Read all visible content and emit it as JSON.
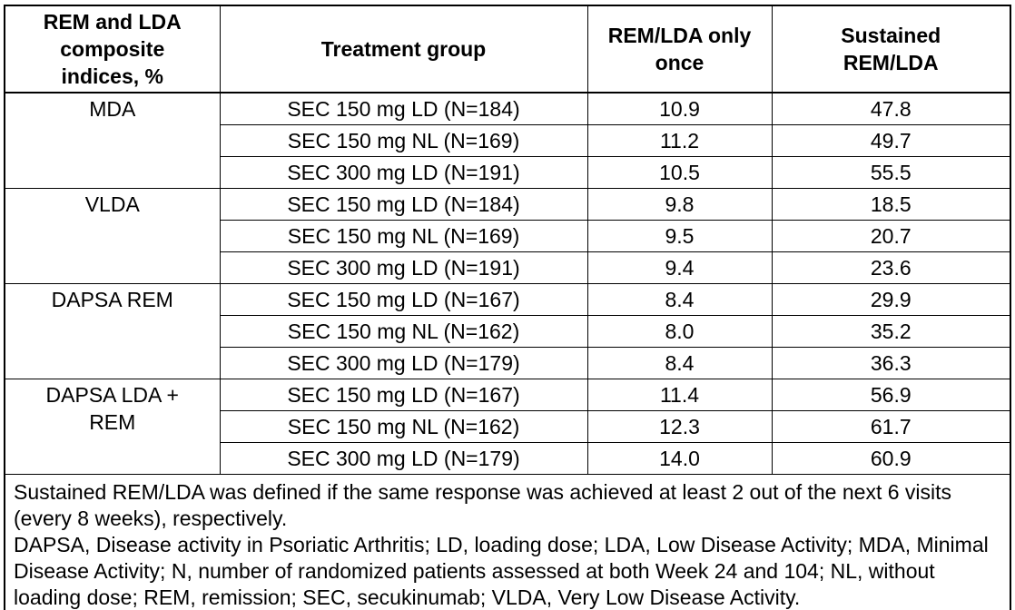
{
  "page": {
    "background_color": "#ffffff",
    "border_color": "#000000",
    "text_color": "#000000"
  },
  "table": {
    "headers": {
      "index": "REM and LDA composite indices, %",
      "treatment": "Treatment group",
      "once": "REM/LDA only once",
      "sustained": "Sustained REM/LDA"
    },
    "groups": [
      {
        "index": "MDA",
        "rows": [
          {
            "treatment": "SEC 150 mg LD (N=184)",
            "once": "10.9",
            "sustained": "47.8"
          },
          {
            "treatment": "SEC 150 mg NL (N=169)",
            "once": "11.2",
            "sustained": "49.7"
          },
          {
            "treatment": "SEC 300 mg LD (N=191)",
            "once": "10.5",
            "sustained": "55.5"
          }
        ]
      },
      {
        "index": "VLDA",
        "rows": [
          {
            "treatment": "SEC 150 mg LD (N=184)",
            "once": "9.8",
            "sustained": "18.5"
          },
          {
            "treatment": "SEC 150 mg NL (N=169)",
            "once": "9.5",
            "sustained": "20.7"
          },
          {
            "treatment": "SEC 300 mg LD (N=191)",
            "once": "9.4",
            "sustained": "23.6"
          }
        ]
      },
      {
        "index": "DAPSA REM",
        "rows": [
          {
            "treatment": "SEC 150 mg LD (N=167)",
            "once": "8.4",
            "sustained": "29.9"
          },
          {
            "treatment": "SEC 150 mg NL (N=162)",
            "once": "8.0",
            "sustained": "35.2"
          },
          {
            "treatment": "SEC 300 mg LD (N=179)",
            "once": "8.4",
            "sustained": "36.3"
          }
        ]
      },
      {
        "index": "DAPSA LDA + REM",
        "rows": [
          {
            "treatment": "SEC 150 mg LD (N=167)",
            "once": "11.4",
            "sustained": "56.9"
          },
          {
            "treatment": "SEC 150 mg NL (N=162)",
            "once": "12.3",
            "sustained": "61.7"
          },
          {
            "treatment": "SEC 300 mg LD (N=179)",
            "once": "14.0",
            "sustained": "60.9"
          }
        ]
      }
    ],
    "footnotes": [
      "Sustained REM/LDA was defined if the same response was achieved at least 2 out of the next 6 visits (every 8 weeks), respectively.",
      "DAPSA, Disease activity in Psoriatic Arthritis; LD, loading dose; LDA, Low Disease Activity; MDA, Minimal Disease Activity; N, number of randomized patients assessed at both Week 24 and 104; NL, without loading dose; REM, remission; SEC, secukinumab; VLDA, Very Low Disease Activity."
    ]
  },
  "chart_data": {
    "type": "table",
    "title": "REM and LDA composite indices, %",
    "columns": [
      "REM and LDA composite indices, %",
      "Treatment group",
      "REM/LDA only once",
      "Sustained REM/LDA"
    ],
    "rows": [
      [
        "MDA",
        "SEC 150 mg LD (N=184)",
        10.9,
        47.8
      ],
      [
        "MDA",
        "SEC 150 mg NL (N=169)",
        11.2,
        49.7
      ],
      [
        "MDA",
        "SEC 300 mg LD (N=191)",
        10.5,
        55.5
      ],
      [
        "VLDA",
        "SEC 150 mg LD (N=184)",
        9.8,
        18.5
      ],
      [
        "VLDA",
        "SEC 150 mg NL (N=169)",
        9.5,
        20.7
      ],
      [
        "VLDA",
        "SEC 300 mg LD (N=191)",
        9.4,
        23.6
      ],
      [
        "DAPSA REM",
        "SEC 150 mg LD (N=167)",
        8.4,
        29.9
      ],
      [
        "DAPSA REM",
        "SEC 150 mg NL (N=162)",
        8.0,
        35.2
      ],
      [
        "DAPSA REM",
        "SEC 300 mg LD (N=179)",
        8.4,
        36.3
      ],
      [
        "DAPSA LDA + REM",
        "SEC 150 mg LD (N=167)",
        11.4,
        56.9
      ],
      [
        "DAPSA LDA + REM",
        "SEC 150 mg NL (N=162)",
        12.3,
        61.7
      ],
      [
        "DAPSA LDA + REM",
        "SEC 300 mg LD (N=179)",
        14.0,
        60.9
      ]
    ]
  }
}
